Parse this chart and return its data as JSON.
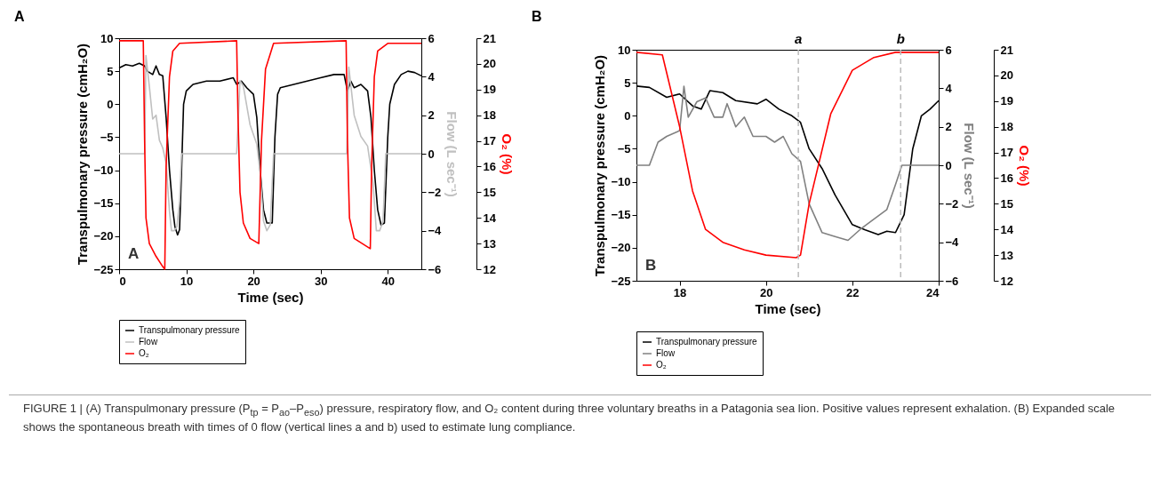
{
  "chart_data": [
    {
      "type": "line",
      "title": "A",
      "xlabel": "Time (sec)",
      "ylabel": "Transpulmonary pressure (cmH₂O)",
      "y2label": "Flow (L sec⁻¹)",
      "y3label": "O₂ (%)",
      "xlim": [
        0,
        45
      ],
      "xticks": [
        0,
        10,
        20,
        30,
        40
      ],
      "ylim": [
        -25,
        10
      ],
      "yticks": [
        -25,
        -20,
        -15,
        -10,
        -5,
        0,
        5,
        10
      ],
      "y2lim": [
        -6,
        6
      ],
      "y2ticks": [
        -6,
        -4,
        -2,
        0,
        2,
        4,
        6
      ],
      "y3lim": [
        12,
        21
      ],
      "y3ticks": [
        12,
        13,
        14,
        15,
        16,
        17,
        18,
        19,
        20,
        21
      ],
      "legend": "bottom left",
      "annotations": [
        "A"
      ],
      "series": [
        {
          "name": "Transpulmonary pressure",
          "color": "#000000",
          "x": [
            0,
            1,
            2,
            3,
            3.8,
            4.2,
            5,
            5.5,
            6,
            6.5,
            7,
            7.5,
            8,
            8.3,
            8.7,
            9,
            9.3,
            9.6,
            10,
            11,
            13,
            15,
            17,
            17.5,
            18.2,
            19,
            20,
            20.5,
            21,
            21.5,
            22,
            22.8,
            23.2,
            23.6,
            24,
            26,
            28,
            30,
            32,
            33.5,
            34,
            34.5,
            35,
            36,
            37,
            37.5,
            38,
            38.5,
            39,
            39.5,
            40,
            40.3,
            41,
            42,
            43,
            44,
            45
          ],
          "values": [
            5.5,
            6,
            5.8,
            6.2,
            5.8,
            5,
            4.5,
            5.8,
            4.5,
            4.3,
            -2,
            -10,
            -16,
            -18.5,
            -19.8,
            -19,
            -10,
            0,
            2,
            3,
            3.5,
            3.5,
            4,
            3,
            3.5,
            2.5,
            1.5,
            -2,
            -10,
            -16,
            -18,
            -18,
            -5,
            1.5,
            2.5,
            3,
            3.5,
            4,
            4.5,
            4.5,
            2,
            3.5,
            2.5,
            3,
            2,
            -2,
            -10,
            -16,
            -18.3,
            -18,
            -5,
            0,
            3,
            4.5,
            5,
            4.8,
            4.3
          ]
        },
        {
          "name": "Flow",
          "color": "#c0c0c0",
          "axis": "y2",
          "x": [
            0,
            3.8,
            4,
            4.5,
            5,
            5.5,
            6,
            6.5,
            7,
            7.5,
            7.8,
            8.2,
            8.6,
            9,
            9.3,
            17.5,
            17.6,
            18,
            18.5,
            19.5,
            20.5,
            21,
            21.5,
            22,
            22.5,
            23,
            33.9,
            34.2,
            35,
            36,
            37,
            37.8,
            38.3,
            38.8,
            39.3,
            39.7,
            45
          ],
          "values": [
            0,
            0,
            5.1,
            3.5,
            1.8,
            2,
            0.7,
            0.3,
            -0.5,
            -3,
            -4,
            -4,
            -3.8,
            -2.5,
            0,
            0,
            0.7,
            3.8,
            3.5,
            1.5,
            0.5,
            -1,
            -3.5,
            -4,
            -3.7,
            0,
            0,
            4.5,
            2,
            0.9,
            0.4,
            -1.5,
            -4,
            -4,
            -3.5,
            0,
            0
          ]
        },
        {
          "name": "O₂",
          "color": "#ff0000",
          "axis": "y3",
          "x": [
            0,
            3.6,
            3.8,
            4,
            4.5,
            5.5,
            6.5,
            6.8,
            7,
            7.5,
            8,
            9,
            17.5,
            17.7,
            18,
            18.5,
            19.5,
            20.8,
            21.2,
            21.8,
            23,
            33.8,
            34,
            34.3,
            35,
            37.4,
            37.6,
            38,
            38.5,
            40,
            45
          ],
          "values": [
            20.9,
            20.9,
            17,
            14,
            13,
            12.5,
            12.1,
            12,
            16,
            19.5,
            20.5,
            20.8,
            20.9,
            18,
            15,
            13.8,
            13.2,
            13,
            17,
            19.8,
            20.8,
            20.9,
            17,
            14,
            13.2,
            12.8,
            16,
            19.5,
            20.5,
            20.8,
            20.8
          ]
        }
      ]
    },
    {
      "type": "line",
      "title": "B",
      "xlabel": "Time (sec)",
      "ylabel": "Transpulmonary pressure (cmH₂O)",
      "y2label": "Flow (L sec⁻¹)",
      "y3label": "O₂ (%)",
      "xlim": [
        17,
        24
      ],
      "xticks": [
        18,
        20,
        22,
        24
      ],
      "ylim": [
        -25,
        10
      ],
      "yticks": [
        -25,
        -20,
        -15,
        -10,
        -5,
        0,
        5,
        10
      ],
      "y2lim": [
        -6,
        6
      ],
      "y2ticks": [
        -6,
        -4,
        -2,
        0,
        2,
        4,
        6
      ],
      "y3lim": [
        12,
        21
      ],
      "y3ticks": [
        12,
        13,
        14,
        15,
        16,
        17,
        18,
        19,
        20,
        21
      ],
      "legend": "bottom left",
      "ref_lines": [
        {
          "axis": "x",
          "value": 20.75,
          "label": "a",
          "color": "#bbbbbb",
          "line_style": "dashed"
        },
        {
          "axis": "x",
          "value": 23.12,
          "label": "b",
          "color": "#bbbbbb",
          "line_style": "dashed"
        }
      ],
      "annotations": [
        "B",
        "FIGURE 1 | (A) Transpulmonary pressure (P$_{tp}$ = P$_{ao}$–P$_{eso}$) pressure, respiratory flow, and O₂ content during three voluntary breaths in a Patagonia sea lion. Positive values represent exhalation. (B) Expanded scale shows the spontaneous breath with times of 0 flow (vertical lines a and b) used to estimate lung compliance."
      ],
      "series": [
        {
          "name": "Transpulmonary pressure",
          "color": "#000000",
          "x": [
            17,
            17.3,
            17.7,
            18,
            18.3,
            18.5,
            18.7,
            19,
            19.3,
            19.8,
            20,
            20.3,
            20.6,
            20.8,
            21,
            21.3,
            21.6,
            22,
            22.3,
            22.6,
            22.8,
            23,
            23.2,
            23.4,
            23.6,
            23.8,
            24
          ],
          "values": [
            4.5,
            4.3,
            2.8,
            3.3,
            1.5,
            1,
            3.8,
            3.5,
            2.3,
            1.8,
            2.5,
            1,
            0,
            -1,
            -5,
            -8,
            -12,
            -16.5,
            -17.3,
            -18,
            -17.5,
            -17.7,
            -15,
            -5,
            0,
            1,
            2.3
          ]
        },
        {
          "name": "Flow",
          "color": "#808080",
          "axis": "y2",
          "x": [
            17,
            17.3,
            17.5,
            17.7,
            18,
            18.1,
            18.2,
            18.4,
            18.6,
            18.8,
            19,
            19.1,
            19.3,
            19.5,
            19.7,
            20,
            20.2,
            20.4,
            20.6,
            20.8,
            21,
            21.3,
            21.6,
            21.9,
            22.2,
            22.5,
            22.8,
            23,
            23.15,
            24
          ],
          "values": [
            0,
            0,
            1.2,
            1.5,
            1.8,
            4.1,
            2.5,
            3.3,
            3.5,
            2.5,
            2.5,
            3.2,
            2,
            2.5,
            1.5,
            1.5,
            1.2,
            1.5,
            0.6,
            0.2,
            -2,
            -3.5,
            -3.7,
            -3.9,
            -3.3,
            -2.8,
            -2.3,
            -1,
            0,
            0
          ]
        },
        {
          "name": "O₂",
          "color": "#ff0000",
          "axis": "y3",
          "x": [
            17,
            17.6,
            18,
            18.3,
            18.6,
            19,
            19.5,
            20,
            20.7,
            20.8,
            21,
            21.5,
            22,
            22.5,
            23,
            24
          ],
          "values": [
            20.9,
            20.8,
            18,
            15.5,
            14,
            13.5,
            13.2,
            13,
            12.9,
            13,
            15,
            18.5,
            20.2,
            20.7,
            20.9,
            20.9
          ]
        }
      ]
    }
  ]
}
